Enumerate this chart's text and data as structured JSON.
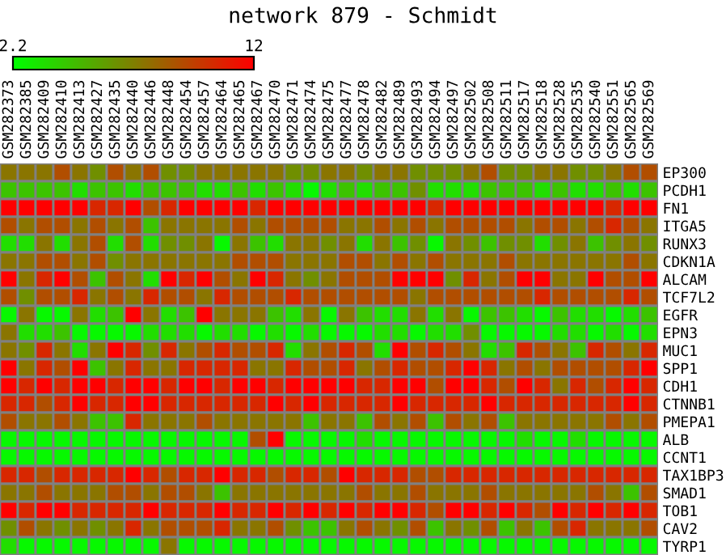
{
  "chart_data": {
    "type": "heatmap",
    "title": "network 879 - Schmidt",
    "categories": [
      "GSM282373",
      "GSM282385",
      "GSM282409",
      "GSM282410",
      "GSM282413",
      "GSM282427",
      "GSM282435",
      "GSM282440",
      "GSM282446",
      "GSM282448",
      "GSM282454",
      "GSM282457",
      "GSM282464",
      "GSM282465",
      "GSM282467",
      "GSM282470",
      "GSM282471",
      "GSM282474",
      "GSM282475",
      "GSM282477",
      "GSM282478",
      "GSM282482",
      "GSM282489",
      "GSM282493",
      "GSM282494",
      "GSM282497",
      "GSM282502",
      "GSM282508",
      "GSM282511",
      "GSM282517",
      "GSM282518",
      "GSM282528",
      "GSM282535",
      "GSM282540",
      "GSM282551",
      "GSM282565",
      "GSM282569"
    ],
    "y_categories": [
      "EP300",
      "PCDH1",
      "FN1",
      "ITGA5",
      "RUNX3",
      "CDKN1A",
      "ALCAM",
      "TCF7L2",
      "EGFR",
      "EPN3",
      "MUC1",
      "SPP1",
      "CDH1",
      "CTNNB1",
      "PMEPA1",
      "ALB",
      "CCNT1",
      "TAX1BP3",
      "SMAD1",
      "TOB1",
      "CAV2",
      "TYRP1"
    ],
    "cells": [
      [
        7.5,
        7.5,
        7.5,
        9,
        7.5,
        6.5,
        9,
        7.5,
        9,
        6.5,
        6.5,
        7.5,
        7.5,
        7.5,
        7.5,
        7.5,
        6.5,
        6.5,
        7.5,
        7.5,
        6.5,
        7.5,
        7.5,
        6.5,
        6.5,
        6.5,
        7.5,
        9,
        6.5,
        6.5,
        7.5,
        7.5,
        6.5,
        6.5,
        7.5,
        9,
        9
      ],
      [
        4.5,
        4.5,
        4.5,
        4.5,
        3.5,
        4.5,
        4.5,
        3.5,
        4.5,
        4.5,
        4.5,
        3.5,
        3.5,
        4.5,
        3.5,
        4.5,
        3.5,
        2.5,
        3.5,
        4.5,
        3.5,
        4.5,
        4.5,
        6.5,
        3.5,
        3.5,
        3.5,
        4.5,
        4.5,
        4.5,
        3.5,
        4.5,
        3.5,
        3.5,
        4.5,
        3.5,
        4.5
      ],
      [
        12,
        12,
        12,
        12,
        12,
        10.5,
        10.5,
        12,
        9,
        10.5,
        12,
        12,
        12,
        12,
        10.5,
        12,
        12,
        12,
        12,
        12,
        12,
        12,
        12,
        12,
        10.5,
        12,
        12,
        12,
        12,
        12,
        12,
        12,
        12,
        12,
        10.5,
        12,
        12
      ],
      [
        9,
        7.5,
        9,
        9,
        7.5,
        9,
        7.5,
        9,
        4.5,
        7.5,
        7.5,
        7.5,
        7.5,
        9,
        7.5,
        9,
        9,
        9,
        9,
        7.5,
        7.5,
        9,
        7.5,
        9,
        7.5,
        9,
        9,
        9,
        9,
        7.5,
        9,
        9,
        7.5,
        9,
        10.5,
        9,
        7.5
      ],
      [
        3.5,
        3.5,
        7.5,
        3.5,
        7.5,
        9,
        3.5,
        9,
        3.5,
        6.5,
        6.5,
        7.5,
        2.5,
        7.5,
        4.5,
        3.5,
        7.5,
        7.5,
        6.5,
        7.5,
        3.5,
        7.5,
        4.5,
        6.5,
        2.5,
        7.5,
        6.5,
        4.5,
        6.5,
        6.5,
        3.5,
        6.5,
        7.5,
        4.5,
        6.5,
        7.5,
        6.5
      ],
      [
        7.5,
        7.5,
        9,
        9,
        7.5,
        9,
        6.5,
        7.5,
        7.5,
        7.5,
        7.5,
        7.5,
        7.5,
        9,
        9,
        9,
        7.5,
        7.5,
        7.5,
        9,
        9,
        7.5,
        9,
        7.5,
        9,
        7.5,
        7.5,
        7.5,
        9,
        7.5,
        7.5,
        7.5,
        7.5,
        7.5,
        7.5,
        9,
        7.5
      ],
      [
        12,
        7.5,
        10.5,
        12,
        9,
        4.5,
        9,
        7.5,
        3.5,
        12,
        10.5,
        12,
        9,
        7.5,
        12,
        10.5,
        7.5,
        6.5,
        7.5,
        9,
        9,
        9,
        12,
        12,
        12,
        6.5,
        10.5,
        7.5,
        9,
        12,
        12,
        7.5,
        7.5,
        12,
        9,
        9,
        12
      ],
      [
        9,
        6.5,
        9,
        9,
        10.5,
        7.5,
        9,
        7.5,
        10.5,
        9,
        9,
        7.5,
        10.5,
        9,
        9,
        9,
        10.5,
        9,
        9,
        9,
        9,
        9,
        9,
        7.5,
        9,
        9,
        9,
        9,
        9,
        9,
        10.5,
        9,
        9,
        9,
        9,
        10.5,
        9
      ],
      [
        2.5,
        7.5,
        2.5,
        2.5,
        7.5,
        3.5,
        4.5,
        12,
        7.5,
        3.5,
        4.5,
        12,
        7.5,
        7.5,
        7.5,
        4.5,
        3.5,
        7.5,
        2.5,
        7.5,
        4.5,
        3.5,
        3.5,
        7.5,
        3.5,
        7.5,
        2.5,
        4.5,
        4.5,
        3.5,
        2.5,
        4.5,
        3.5,
        3.5,
        2.5,
        3.5,
        4.5
      ],
      [
        7.5,
        3.5,
        3.5,
        4.5,
        2.5,
        2.5,
        2.5,
        2.5,
        3.5,
        3.5,
        3.5,
        2.5,
        3.5,
        3.5,
        2.5,
        3.5,
        2.5,
        3.5,
        2.5,
        2.5,
        2.5,
        3.5,
        3.5,
        2.5,
        3.5,
        3.5,
        6.5,
        2.5,
        2.5,
        2.5,
        2.5,
        3.5,
        3.5,
        2.5,
        3.5,
        2.5,
        3.5
      ],
      [
        7.5,
        6.5,
        10.5,
        7.5,
        3.5,
        7.5,
        12,
        10.5,
        6.5,
        10.5,
        7.5,
        9,
        10.5,
        9,
        9,
        10.5,
        3.5,
        7.5,
        9,
        10.5,
        9,
        3.5,
        12,
        9,
        10.5,
        9,
        7.5,
        3.5,
        4.5,
        10.5,
        9,
        7.5,
        4.5,
        10.5,
        9,
        7.5,
        10.5
      ],
      [
        12,
        7.5,
        10.5,
        9,
        12,
        4.5,
        7.5,
        10.5,
        7.5,
        7.5,
        10.5,
        10.5,
        10.5,
        10.5,
        7.5,
        7.5,
        10.5,
        9,
        9,
        10.5,
        7.5,
        9,
        10.5,
        9,
        9,
        10.5,
        12,
        10.5,
        7.5,
        9,
        7.5,
        9,
        9,
        9,
        9,
        10.5,
        12
      ],
      [
        12,
        10.5,
        12,
        10.5,
        12,
        12,
        10.5,
        12,
        12,
        10.5,
        12,
        12,
        10.5,
        12,
        12,
        10.5,
        12,
        12,
        12,
        12,
        10.5,
        10.5,
        12,
        12,
        9,
        12,
        12,
        10.5,
        9,
        12,
        10.5,
        7.5,
        10.5,
        9,
        10.5,
        12,
        10.5
      ],
      [
        10.5,
        10.5,
        9,
        10.5,
        12,
        10.5,
        10.5,
        12,
        12,
        10.5,
        10.5,
        10.5,
        10.5,
        10.5,
        10.5,
        12,
        10.5,
        12,
        10.5,
        10.5,
        10.5,
        10.5,
        12,
        10.5,
        10.5,
        10.5,
        10.5,
        12,
        10.5,
        10.5,
        10.5,
        10.5,
        10.5,
        10.5,
        10.5,
        12,
        10.5
      ],
      [
        9,
        7.5,
        7.5,
        9,
        7.5,
        4.5,
        4.5,
        10.5,
        7.5,
        7.5,
        7.5,
        9,
        7.5,
        7.5,
        7.5,
        7.5,
        7.5,
        4.5,
        7.5,
        7.5,
        4.5,
        9,
        7.5,
        9,
        4.5,
        9,
        7.5,
        9,
        4.5,
        7.5,
        7.5,
        7.5,
        7.5,
        7.5,
        9,
        7.5,
        9
      ],
      [
        2.5,
        2.5,
        2.5,
        2.5,
        2.5,
        2.5,
        2.5,
        2.5,
        2.5,
        2.5,
        2.5,
        2.5,
        2.5,
        2.5,
        9,
        12,
        2.5,
        2.5,
        2.5,
        2.5,
        3.5,
        2.5,
        2.5,
        2.5,
        2.5,
        2.5,
        2.5,
        2.5,
        2.5,
        3.5,
        2.5,
        2.5,
        3.5,
        2.5,
        2.5,
        2.5,
        2.5
      ],
      [
        2.5,
        2.5,
        2.5,
        2.5,
        2.5,
        2.5,
        2.5,
        2.5,
        2.5,
        2.5,
        2.5,
        2.5,
        2.5,
        2.5,
        2.5,
        2.5,
        2.5,
        2.5,
        2.5,
        2.5,
        2.5,
        2.5,
        2.5,
        2.5,
        2.5,
        2.5,
        2.5,
        2.5,
        2.5,
        2.5,
        2.5,
        2.5,
        2.5,
        2.5,
        2.5,
        2.5,
        2.5
      ],
      [
        10.5,
        10.5,
        9,
        10.5,
        10.5,
        10.5,
        10.5,
        12,
        10.5,
        9,
        10.5,
        10.5,
        12,
        10.5,
        10.5,
        9,
        10.5,
        10.5,
        9,
        12,
        10.5,
        10.5,
        10.5,
        9,
        9,
        10.5,
        10.5,
        10.5,
        10.5,
        10.5,
        10.5,
        10.5,
        10.5,
        10.5,
        10.5,
        10.5,
        10.5
      ],
      [
        7.5,
        7.5,
        9,
        7.5,
        7.5,
        7.5,
        9,
        9,
        7.5,
        9,
        9,
        7.5,
        4.5,
        7.5,
        7.5,
        7.5,
        7.5,
        7.5,
        7.5,
        7.5,
        9,
        7.5,
        7.5,
        9,
        7.5,
        7.5,
        7.5,
        9,
        7.5,
        7.5,
        7.5,
        7.5,
        7.5,
        9,
        7.5,
        4.5,
        9
      ],
      [
        12,
        10.5,
        12,
        12,
        10.5,
        10.5,
        10.5,
        10.5,
        12,
        10.5,
        10.5,
        10.5,
        12,
        10.5,
        10.5,
        12,
        10.5,
        12,
        10.5,
        12,
        10.5,
        12,
        12,
        10.5,
        9,
        12,
        12,
        10.5,
        12,
        10.5,
        9,
        12,
        10.5,
        12,
        10.5,
        12,
        10.5
      ],
      [
        6.5,
        9,
        7.5,
        6.5,
        7.5,
        6.5,
        7.5,
        10.5,
        7.5,
        9,
        9,
        9,
        10.5,
        7.5,
        7.5,
        9,
        6.5,
        4.5,
        4.5,
        7.5,
        9,
        7.5,
        6.5,
        9,
        4.5,
        7.5,
        6.5,
        9,
        4.5,
        7.5,
        4.5,
        9,
        10.5,
        7.5,
        7.5,
        7.5,
        9
      ],
      [
        3.5,
        2.5,
        2.5,
        2.5,
        2.5,
        2.5,
        2.5,
        2.5,
        2.5,
        7.5,
        2.5,
        2.5,
        2.5,
        2.5,
        2.5,
        2.5,
        2.5,
        2.5,
        2.5,
        2.5,
        2.5,
        2.5,
        2.5,
        2.5,
        2.5,
        2.5,
        2.5,
        2.5,
        2.5,
        2.5,
        2.5,
        2.5,
        2.5,
        2.5,
        2.5,
        2.5,
        2.5
      ]
    ],
    "clim": [
      2.2,
      12
    ],
    "cticks": [
      2.2,
      12
    ]
  }
}
